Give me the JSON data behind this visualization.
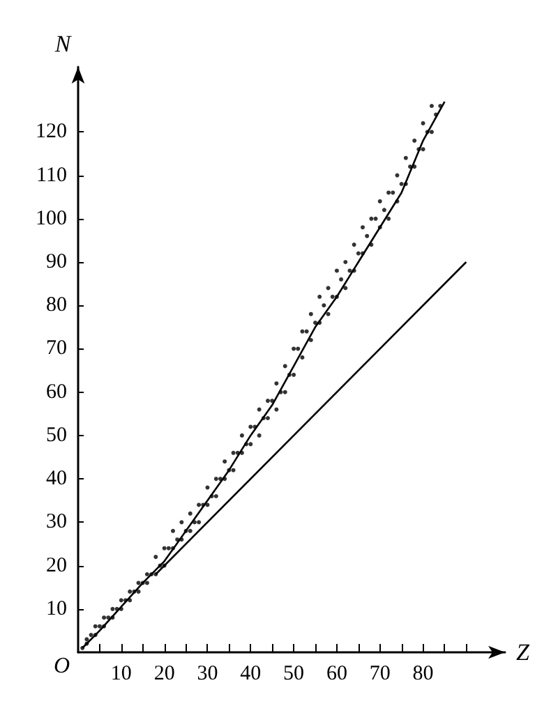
{
  "chart_data": {
    "type": "scatter",
    "xlabel": "Z",
    "ylabel": "N",
    "annotations": [
      "O"
    ],
    "xlim": [
      0,
      99
    ],
    "ylim": [
      0,
      135
    ],
    "xticks": [
      {
        "value": 5,
        "label": null
      },
      10,
      {
        "value": 15,
        "label": null
      },
      20,
      {
        "value": 25,
        "label": null
      },
      30,
      {
        "value": 35,
        "label": null
      },
      40,
      {
        "value": 45,
        "label": null
      },
      50,
      {
        "value": 55,
        "label": null
      },
      60,
      {
        "value": 65,
        "label": null
      },
      70,
      {
        "value": 75,
        "label": null
      },
      80,
      {
        "value": 85,
        "label": null
      },
      {
        "value": 90,
        "label": null
      }
    ],
    "yticks": [
      10,
      20,
      30,
      40,
      50,
      60,
      70,
      80,
      90,
      100,
      110,
      120
    ],
    "grid": false,
    "legend": false,
    "series": [
      {
        "color": "#000000",
        "marker": "circle",
        "x": [
          1,
          2,
          2,
          3,
          4,
          4,
          5,
          6,
          6,
          7,
          8,
          8,
          9,
          10,
          10,
          11,
          12,
          12,
          13,
          14,
          14,
          15,
          16,
          16,
          17,
          18,
          18,
          19,
          20,
          20,
          21,
          22,
          22,
          23,
          24,
          24,
          25,
          26,
          26,
          27,
          28,
          28,
          29,
          30,
          30,
          31,
          32,
          32,
          33,
          34,
          34,
          35,
          36,
          36,
          37,
          38,
          38,
          39,
          40,
          40,
          41,
          42,
          42,
          43,
          44,
          44,
          45,
          46,
          46,
          47,
          48,
          48,
          49,
          50,
          50,
          51,
          52,
          52,
          53,
          54,
          54,
          55,
          56,
          56,
          57,
          58,
          58,
          59,
          60,
          60,
          61,
          62,
          62,
          63,
          64,
          64,
          65,
          66,
          66,
          67,
          68,
          68,
          69,
          70,
          70,
          71,
          72,
          72,
          73,
          74,
          74,
          75,
          76,
          76,
          77,
          78,
          78,
          79,
          80,
          80,
          81,
          82,
          82,
          83,
          84
        ],
        "values": [
          1,
          2,
          3,
          4,
          4,
          6,
          6,
          6,
          8,
          8,
          8,
          10,
          10,
          10,
          12,
          12,
          12,
          14,
          14,
          14,
          16,
          16,
          16,
          18,
          18,
          18,
          22,
          20,
          20,
          24,
          24,
          24,
          28,
          26,
          26,
          30,
          28,
          28,
          32,
          30,
          30,
          34,
          34,
          34,
          38,
          36,
          36,
          40,
          40,
          40,
          44,
          42,
          42,
          46,
          46,
          46,
          50,
          48,
          48,
          52,
          52,
          50,
          56,
          54,
          54,
          58,
          58,
          56,
          62,
          60,
          60,
          66,
          64,
          64,
          70,
          70,
          68,
          74,
          74,
          72,
          78,
          76,
          76,
          82,
          80,
          78,
          84,
          82,
          82,
          88,
          86,
          84,
          90,
          88,
          88,
          94,
          92,
          92,
          98,
          96,
          94,
          100,
          100,
          98,
          104,
          102,
          100,
          106,
          106,
          104,
          110,
          108,
          108,
          114,
          112,
          112,
          118,
          116,
          116,
          122,
          120,
          120,
          126,
          124,
          126
        ]
      },
      {
        "type": "line",
        "color": "#000000",
        "marker": "none",
        "line_style": "solid",
        "x": [
          1,
          5,
          10,
          15,
          20,
          25,
          30,
          35,
          40,
          45,
          50,
          55,
          60,
          65,
          70,
          75,
          80,
          85
        ],
        "values": [
          1,
          5,
          10.5,
          16,
          21,
          28,
          35,
          42,
          50,
          57,
          66,
          75,
          82,
          90,
          98,
          106,
          118,
          127
        ]
      },
      {
        "type": "line",
        "color": "#000000",
        "marker": "none",
        "line_style": "solid",
        "x": [
          18,
          90
        ],
        "values": [
          18,
          90
        ]
      }
    ]
  }
}
